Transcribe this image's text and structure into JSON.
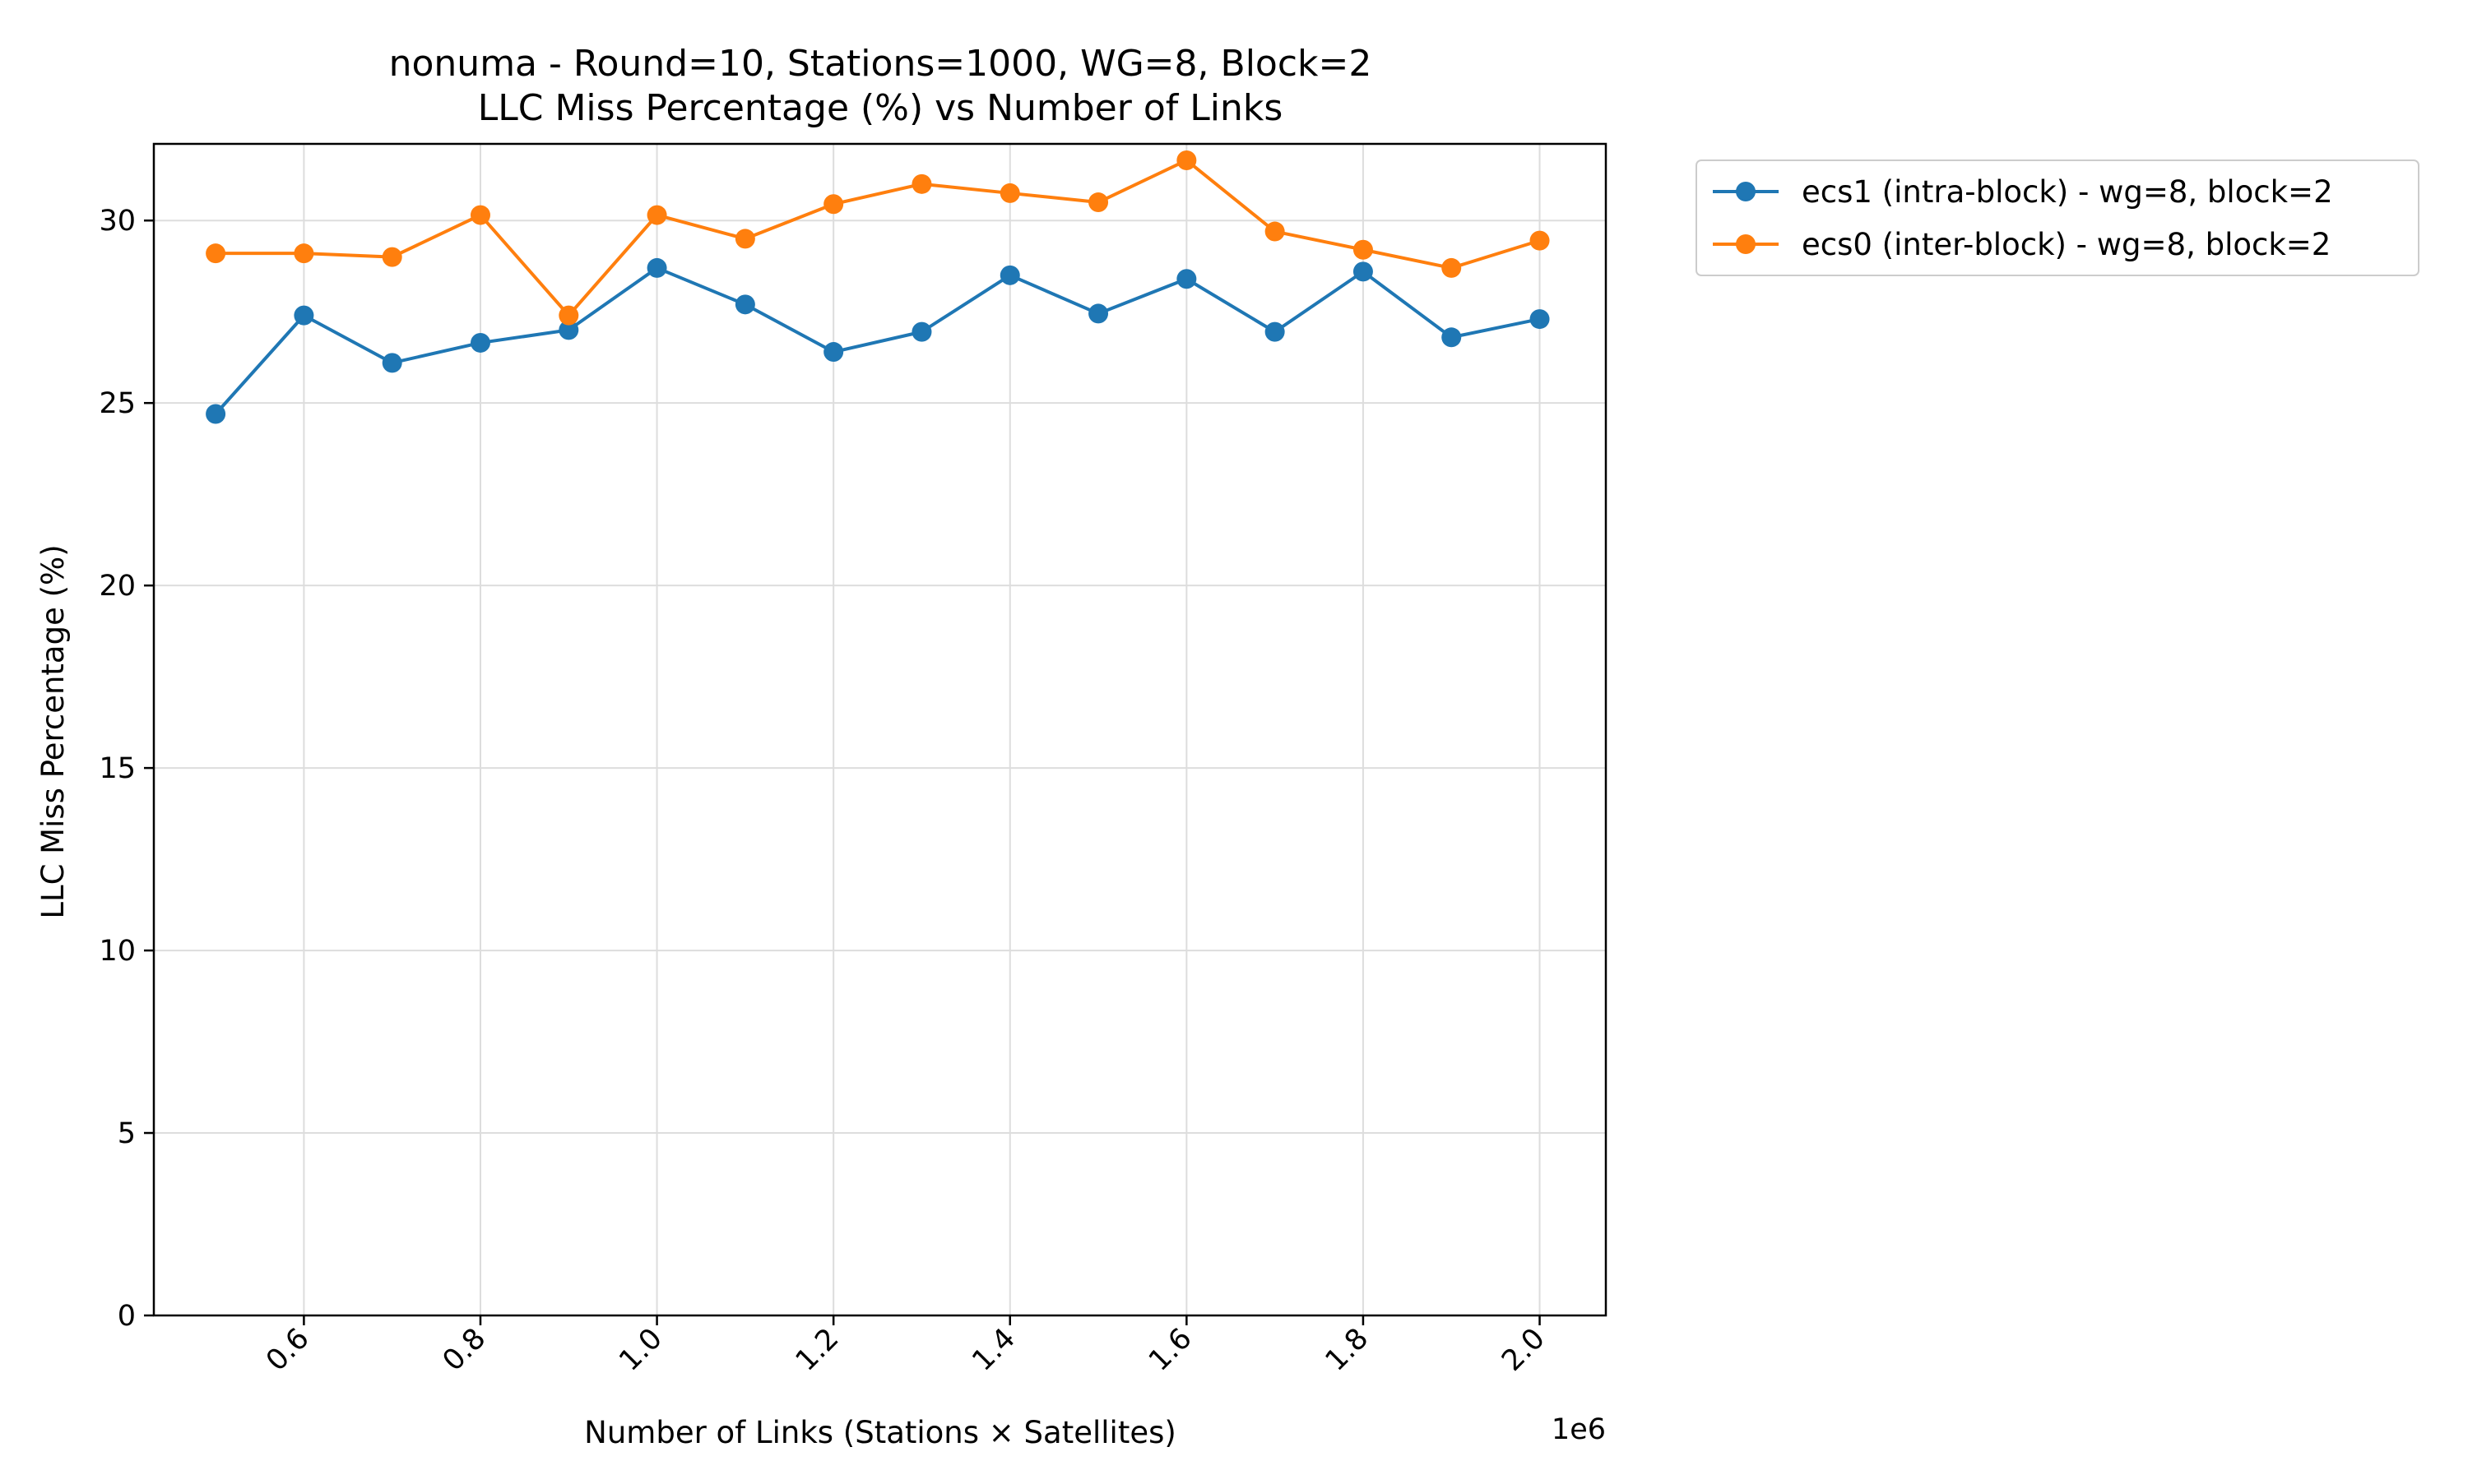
{
  "chart_data": {
    "type": "line",
    "title_line1": "nonuma - Round=10, Stations=1000, WG=8, Block=2",
    "title_line2": "LLC Miss Percentage (%) vs Number of Links",
    "xlabel": "Number of Links (Stations × Satellites)",
    "ylabel": "LLC Miss Percentage (%)",
    "x_offset_label": "1e6",
    "x_scale": 1000000,
    "x_ticks": [
      "0.6",
      "0.8",
      "1.0",
      "1.2",
      "1.4",
      "1.6",
      "1.8",
      "2.0"
    ],
    "x_tick_values": [
      600000,
      800000,
      1000000,
      1200000,
      1400000,
      1600000,
      1800000,
      2000000
    ],
    "y_ticks": [
      "0",
      "5",
      "10",
      "15",
      "20",
      "25",
      "30"
    ],
    "y_tick_values": [
      0,
      5,
      10,
      15,
      20,
      25,
      30
    ],
    "xlim": [
      430000,
      2075000
    ],
    "ylim": [
      0,
      32.1
    ],
    "grid": true,
    "legend_position": "outside-top-right",
    "x": [
      500000,
      600000,
      700000,
      800000,
      900000,
      1000000,
      1100000,
      1200000,
      1300000,
      1400000,
      1500000,
      1600000,
      1700000,
      1800000,
      1900000,
      2000000
    ],
    "series": [
      {
        "name": "ecs1 (intra-block) - wg=8, block=2",
        "color": "#1f77b4",
        "marker": "circle",
        "values": [
          24.7,
          27.4,
          26.1,
          26.65,
          27.0,
          28.7,
          27.7,
          26.4,
          26.95,
          28.5,
          27.45,
          28.4,
          26.95,
          28.6,
          26.8,
          27.3
        ]
      },
      {
        "name": "ecs0 (inter-block) - wg=8, block=2",
        "color": "#ff7f0e",
        "marker": "circle",
        "values": [
          29.1,
          29.1,
          29.0,
          30.15,
          27.4,
          30.15,
          29.5,
          30.45,
          31.0,
          30.75,
          30.5,
          31.65,
          29.7,
          29.2,
          28.7,
          29.45
        ]
      }
    ]
  }
}
